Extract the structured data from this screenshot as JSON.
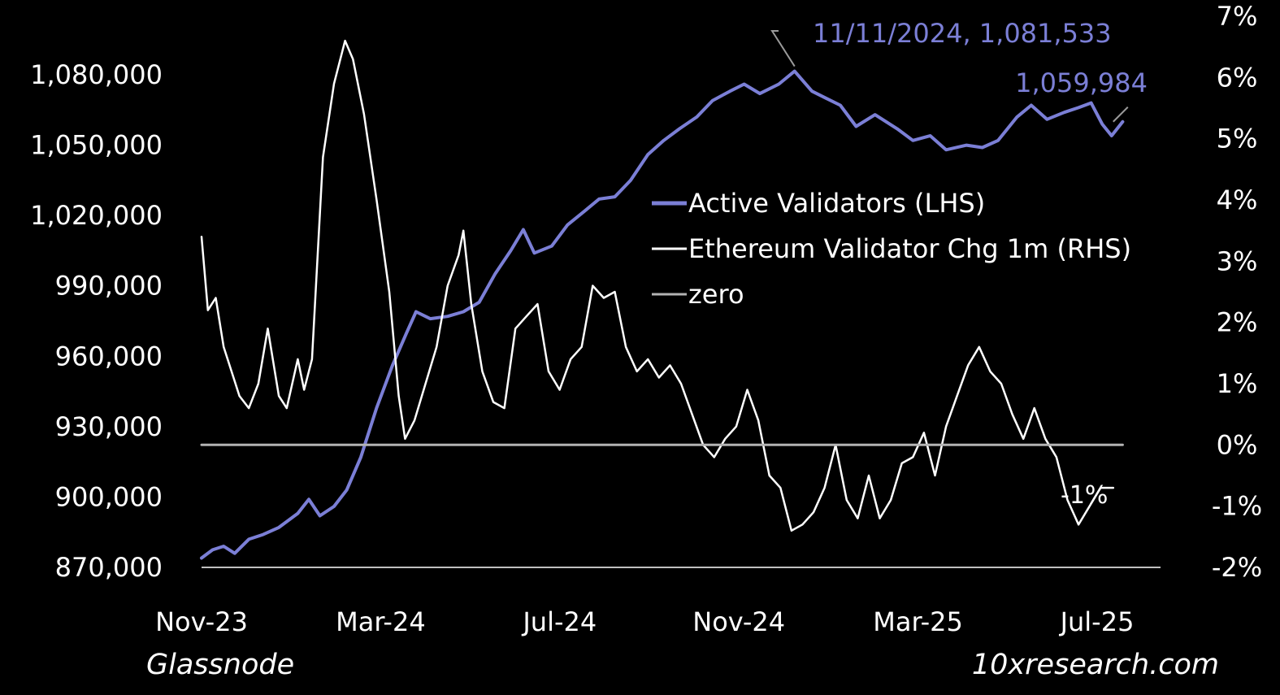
{
  "chart_data": {
    "type": "line",
    "x_ticks": [
      "Nov-23",
      "Mar-24",
      "Jul-24",
      "Nov-24",
      "Mar-25",
      "Jul-25"
    ],
    "y_left": {
      "ticks": [
        "870,000",
        "900,000",
        "930,000",
        "960,000",
        "990,000",
        "1,020,000",
        "1,050,000",
        "1,080,000"
      ],
      "range": [
        870000,
        1080000
      ]
    },
    "y_right": {
      "ticks": [
        "-2%",
        "-1%",
        "0%",
        "1%",
        "2%",
        "3%",
        "4%",
        "5%",
        "6%",
        "7%"
      ],
      "range": [
        -2,
        7
      ]
    },
    "x_range": [
      "2023-11-01",
      "2025-07-01"
    ],
    "grid": false,
    "legend": {
      "placement": "center-right",
      "entries": [
        {
          "label": "Active Validators (LHS)",
          "color": "#7b7fd6"
        },
        {
          "label": "Ethereum Validator Chg 1m (RHS)",
          "color": "#ffffff"
        },
        {
          "label": "zero",
          "color": "#b3b3b3"
        }
      ]
    },
    "annotations": [
      {
        "text": "11/11/2024, 1,081,533",
        "x": "2024-11-11",
        "y": 1081533,
        "series": "Active Validators (LHS)",
        "color": "#7b7fd6"
      },
      {
        "text": "1,059,984",
        "x": "2025-06-01",
        "y": 1059984,
        "series": "Active Validators (LHS)",
        "color": "#7b7fd6"
      },
      {
        "text": "-1%",
        "x": "2025-06-01",
        "y": -0.7,
        "series": "Ethereum Validator Chg 1m (RHS)",
        "color": "#ffffff"
      }
    ],
    "series": [
      {
        "name": "Active Validators (LHS)",
        "axis": "left",
        "color": "#7b7fd6",
        "points": [
          [
            "2023-11-01",
            874000
          ],
          [
            "2023-11-08",
            877500
          ],
          [
            "2023-11-15",
            879000
          ],
          [
            "2023-11-22",
            876000
          ],
          [
            "2023-12-01",
            882000
          ],
          [
            "2023-12-10",
            884000
          ],
          [
            "2023-12-20",
            887000
          ],
          [
            "2024-01-01",
            893000
          ],
          [
            "2024-01-08",
            899000
          ],
          [
            "2024-01-15",
            892000
          ],
          [
            "2024-01-24",
            896000
          ],
          [
            "2024-02-01",
            903000
          ],
          [
            "2024-02-10",
            917000
          ],
          [
            "2024-02-20",
            938000
          ],
          [
            "2024-03-01",
            956000
          ],
          [
            "2024-03-10",
            970000
          ],
          [
            "2024-03-16",
            979000
          ],
          [
            "2024-03-25",
            976000
          ],
          [
            "2024-04-05",
            977000
          ],
          [
            "2024-04-15",
            979000
          ],
          [
            "2024-04-25",
            983000
          ],
          [
            "2024-05-05",
            995000
          ],
          [
            "2024-05-15",
            1005000
          ],
          [
            "2024-05-23",
            1014000
          ],
          [
            "2024-05-30",
            1004000
          ],
          [
            "2024-06-10",
            1007000
          ],
          [
            "2024-06-20",
            1016000
          ],
          [
            "2024-07-01",
            1022000
          ],
          [
            "2024-07-10",
            1027000
          ],
          [
            "2024-07-20",
            1028000
          ],
          [
            "2024-07-30",
            1035000
          ],
          [
            "2024-08-10",
            1046000
          ],
          [
            "2024-08-20",
            1052000
          ],
          [
            "2024-08-30",
            1057000
          ],
          [
            "2024-09-10",
            1062000
          ],
          [
            "2024-09-20",
            1069000
          ],
          [
            "2024-10-01",
            1073000
          ],
          [
            "2024-10-10",
            1076000
          ],
          [
            "2024-10-20",
            1072000
          ],
          [
            "2024-11-01",
            1076000
          ],
          [
            "2024-11-11",
            1081533
          ],
          [
            "2024-11-22",
            1073000
          ],
          [
            "2024-12-01",
            1070000
          ],
          [
            "2024-12-10",
            1067000
          ],
          [
            "2024-12-20",
            1058000
          ],
          [
            "2025-01-01",
            1063000
          ],
          [
            "2025-01-15",
            1057000
          ],
          [
            "2025-01-25",
            1052000
          ],
          [
            "2025-02-05",
            1054000
          ],
          [
            "2025-02-15",
            1048000
          ],
          [
            "2025-02-28",
            1050000
          ],
          [
            "2025-03-10",
            1049000
          ],
          [
            "2025-03-20",
            1052000
          ],
          [
            "2025-04-01",
            1062000
          ],
          [
            "2025-04-10",
            1067000
          ],
          [
            "2025-04-20",
            1061000
          ],
          [
            "2025-05-01",
            1064000
          ],
          [
            "2025-05-10",
            1066000
          ],
          [
            "2025-05-18",
            1068000
          ],
          [
            "2025-05-25",
            1059000
          ],
          [
            "2025-05-31",
            1054000
          ],
          [
            "2025-06-07",
            1059984
          ]
        ]
      },
      {
        "name": "Ethereum Validator Chg 1m (RHS)",
        "axis": "right",
        "color": "#ffffff",
        "points": [
          [
            "2023-11-01",
            3.4
          ],
          [
            "2023-11-05",
            2.2
          ],
          [
            "2023-11-10",
            2.4
          ],
          [
            "2023-11-15",
            1.6
          ],
          [
            "2023-11-20",
            1.2
          ],
          [
            "2023-11-25",
            0.8
          ],
          [
            "2023-12-01",
            0.6
          ],
          [
            "2023-12-07",
            1.0
          ],
          [
            "2023-12-13",
            1.9
          ],
          [
            "2023-12-20",
            0.8
          ],
          [
            "2023-12-25",
            0.6
          ],
          [
            "2024-01-01",
            1.4
          ],
          [
            "2024-01-05",
            0.9
          ],
          [
            "2024-01-10",
            1.4
          ],
          [
            "2024-01-17",
            4.7
          ],
          [
            "2024-01-24",
            5.9
          ],
          [
            "2024-01-31",
            6.6
          ],
          [
            "2024-02-05",
            6.3
          ],
          [
            "2024-02-12",
            5.4
          ],
          [
            "2024-02-20",
            4.0
          ],
          [
            "2024-02-28",
            2.5
          ],
          [
            "2024-03-05",
            0.8
          ],
          [
            "2024-03-09",
            0.1
          ],
          [
            "2024-03-15",
            0.4
          ],
          [
            "2024-03-22",
            1.0
          ],
          [
            "2024-03-29",
            1.6
          ],
          [
            "2024-04-05",
            2.6
          ],
          [
            "2024-04-12",
            3.1
          ],
          [
            "2024-04-15",
            3.5
          ],
          [
            "2024-04-20",
            2.3
          ],
          [
            "2024-04-27",
            1.2
          ],
          [
            "2024-05-04",
            0.7
          ],
          [
            "2024-05-11",
            0.6
          ],
          [
            "2024-05-18",
            1.9
          ],
          [
            "2024-05-25",
            2.1
          ],
          [
            "2024-06-01",
            2.3
          ],
          [
            "2024-06-08",
            1.2
          ],
          [
            "2024-06-15",
            0.9
          ],
          [
            "2024-06-22",
            1.4
          ],
          [
            "2024-06-29",
            1.6
          ],
          [
            "2024-07-06",
            2.6
          ],
          [
            "2024-07-13",
            2.4
          ],
          [
            "2024-07-20",
            2.5
          ],
          [
            "2024-07-27",
            1.6
          ],
          [
            "2024-08-03",
            1.2
          ],
          [
            "2024-08-10",
            1.4
          ],
          [
            "2024-08-17",
            1.1
          ],
          [
            "2024-08-24",
            1.3
          ],
          [
            "2024-08-31",
            1.0
          ],
          [
            "2024-09-07",
            0.5
          ],
          [
            "2024-09-14",
            0.0
          ],
          [
            "2024-09-21",
            -0.2
          ],
          [
            "2024-09-28",
            0.1
          ],
          [
            "2024-10-05",
            0.3
          ],
          [
            "2024-10-12",
            0.9
          ],
          [
            "2024-10-19",
            0.4
          ],
          [
            "2024-10-26",
            -0.5
          ],
          [
            "2024-11-02",
            -0.7
          ],
          [
            "2024-11-09",
            -1.4
          ],
          [
            "2024-11-16",
            -1.3
          ],
          [
            "2024-11-23",
            -1.1
          ],
          [
            "2024-11-30",
            -0.7
          ],
          [
            "2024-12-07",
            0.0
          ],
          [
            "2024-12-14",
            -0.9
          ],
          [
            "2024-12-21",
            -1.2
          ],
          [
            "2024-12-28",
            -0.5
          ],
          [
            "2025-01-04",
            -1.2
          ],
          [
            "2025-01-11",
            -0.9
          ],
          [
            "2025-01-18",
            -0.3
          ],
          [
            "2025-01-25",
            -0.2
          ],
          [
            "2025-02-01",
            0.2
          ],
          [
            "2025-02-08",
            -0.5
          ],
          [
            "2025-02-15",
            0.3
          ],
          [
            "2025-02-22",
            0.8
          ],
          [
            "2025-03-01",
            1.3
          ],
          [
            "2025-03-08",
            1.6
          ],
          [
            "2025-03-15",
            1.2
          ],
          [
            "2025-03-22",
            1.0
          ],
          [
            "2025-03-29",
            0.5
          ],
          [
            "2025-04-05",
            0.1
          ],
          [
            "2025-04-12",
            0.6
          ],
          [
            "2025-04-19",
            0.1
          ],
          [
            "2025-04-26",
            -0.2
          ],
          [
            "2025-05-03",
            -0.9
          ],
          [
            "2025-05-10",
            -1.3
          ],
          [
            "2025-05-17",
            -1.0
          ],
          [
            "2025-05-24",
            -0.7
          ],
          [
            "2025-06-01",
            -0.7
          ]
        ]
      },
      {
        "name": "zero",
        "axis": "right",
        "color": "#b3b3b3",
        "points": [
          [
            "2023-11-01",
            0
          ],
          [
            "2025-06-07",
            0
          ]
        ]
      }
    ]
  },
  "footer": {
    "source_left": "Glassnode",
    "source_right": "10xresearch.com"
  }
}
